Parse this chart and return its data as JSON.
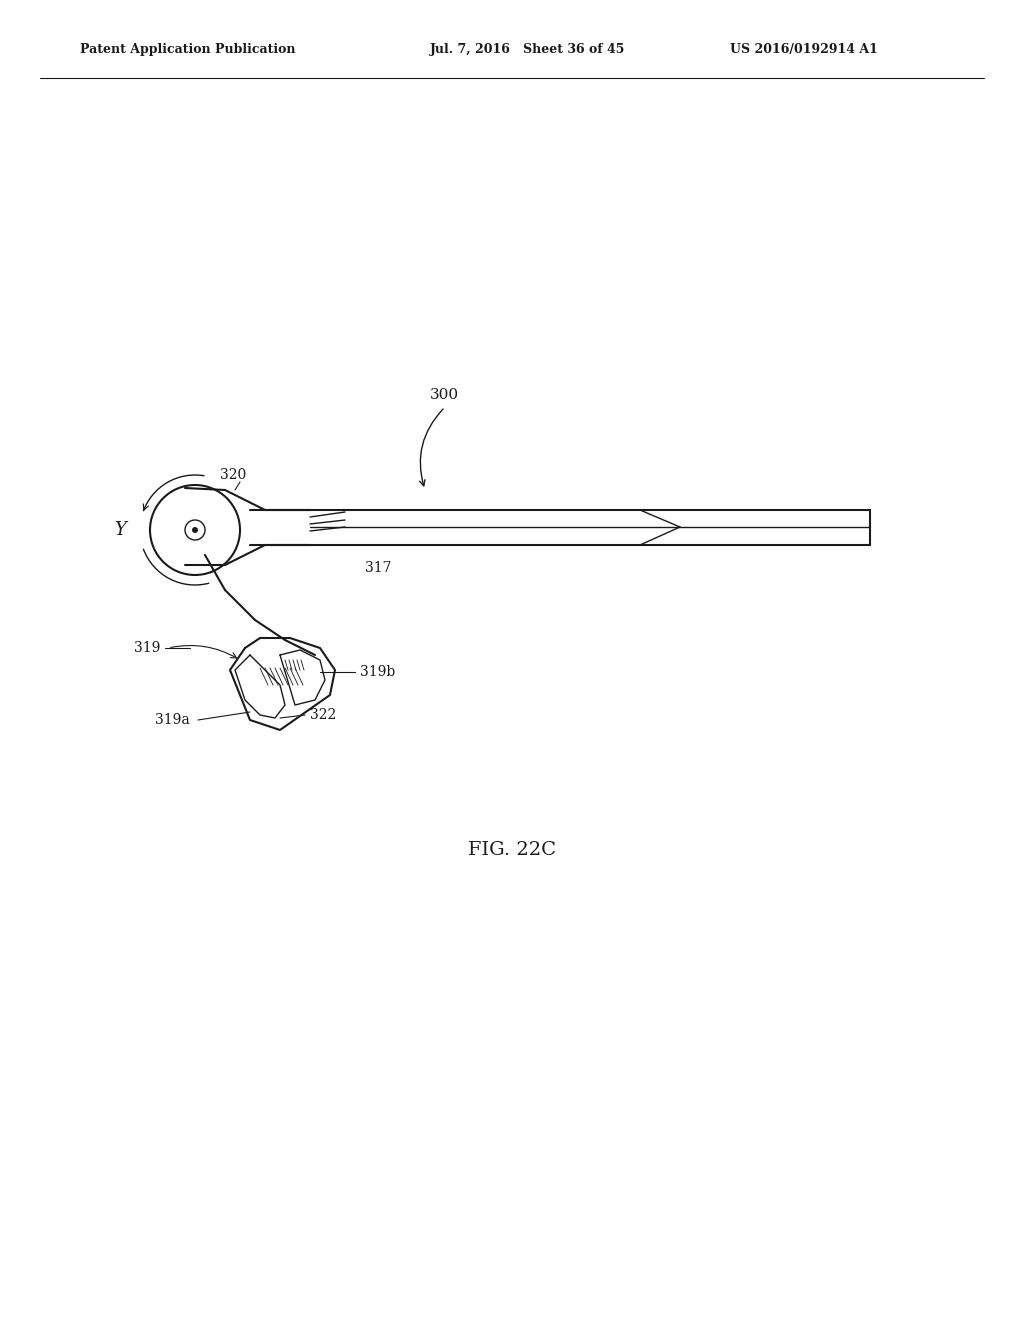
{
  "bg_color": "#ffffff",
  "line_color": "#1a1a1a",
  "header_left": "Patent Application Publication",
  "header_mid": "Jul. 7, 2016   Sheet 36 of 45",
  "header_right": "US 2016/0192914 A1",
  "fig_label": "FIG. 22C",
  "label_300": "300",
  "label_320": "320",
  "label_317": "317",
  "label_319": "319",
  "label_319a": "319a",
  "label_319b": "319b",
  "label_322": "322",
  "label_Y": "Y"
}
